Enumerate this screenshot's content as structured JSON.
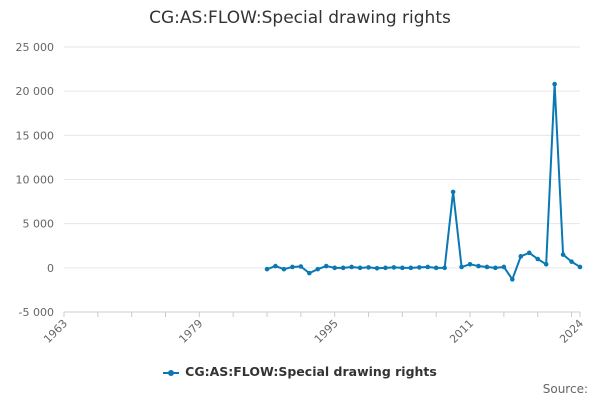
{
  "title": "CG:AS:FLOW:Special drawing rights",
  "source_label": "Source:",
  "colors": {
    "series": "#0a78b4",
    "grid": "#e6e6e6",
    "axis": "#cccccc"
  },
  "chart_data": {
    "type": "line",
    "title": "CG:AS:FLOW:Special drawing rights",
    "xlabel": "",
    "ylabel": "",
    "xlim": [
      1963,
      2024
    ],
    "ylim": [
      -5000,
      25000
    ],
    "y_ticks": [
      -5000,
      0,
      5000,
      10000,
      15000,
      20000,
      25000
    ],
    "y_tick_labels": [
      "-5 000",
      "0",
      "5 000",
      "10 000",
      "15 000",
      "20 000",
      "25 000"
    ],
    "x_ticks": [
      1963,
      1979,
      1995,
      2011,
      2024
    ],
    "x_tick_labels": [
      "1963",
      "1979",
      "1995",
      "2011",
      "2024"
    ],
    "grid": "horizontal",
    "legend_position": "bottom-center",
    "series": [
      {
        "name": "CG:AS:FLOW:Special drawing rights",
        "x": [
          1987,
          1988,
          1989,
          1990,
          1991,
          1992,
          1993,
          1994,
          1995,
          1996,
          1997,
          1998,
          1999,
          2000,
          2001,
          2002,
          2003,
          2004,
          2005,
          2006,
          2007,
          2008,
          2009,
          2010,
          2011,
          2012,
          2013,
          2014,
          2015,
          2016,
          2017,
          2018,
          2019,
          2020,
          2021,
          2022,
          2023,
          2024
        ],
        "values": [
          -150,
          200,
          -150,
          100,
          150,
          -600,
          -150,
          200,
          0,
          0,
          100,
          0,
          50,
          -50,
          0,
          50,
          0,
          0,
          50,
          100,
          0,
          0,
          8600,
          100,
          400,
          200,
          100,
          0,
          100,
          -1300,
          1300,
          1700,
          1000,
          400,
          20800,
          1500,
          700,
          100
        ]
      }
    ]
  }
}
